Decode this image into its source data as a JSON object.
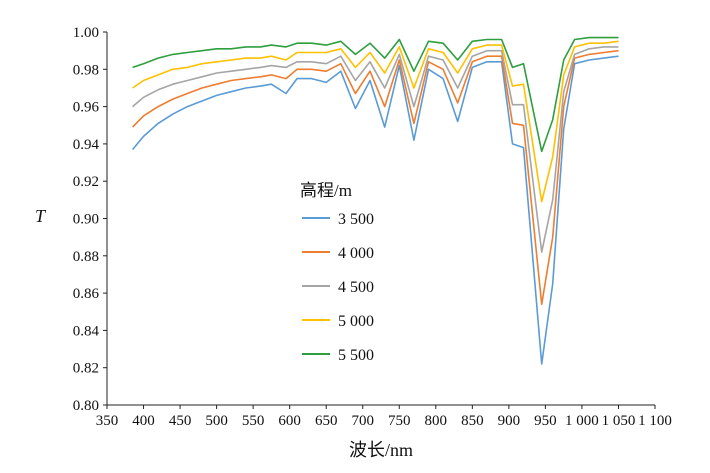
{
  "chart_data": {
    "type": "line",
    "xlabel": "波长/nm",
    "ylabel": "T",
    "xlim": [
      350,
      1100
    ],
    "ylim": [
      0.8,
      1.0
    ],
    "x_ticks": [
      350,
      400,
      450,
      500,
      550,
      600,
      650,
      700,
      750,
      800,
      850,
      900,
      950,
      1000,
      1050,
      1100
    ],
    "x_tick_labels": [
      "350",
      "400",
      "450",
      "500",
      "550",
      "600",
      "650",
      "700",
      "750",
      "800",
      "850",
      "900",
      "950",
      "1 000",
      "1 050",
      "1 100"
    ],
    "y_ticks": [
      0.8,
      0.82,
      0.84,
      0.86,
      0.88,
      0.9,
      0.92,
      0.94,
      0.96,
      0.98,
      1.0
    ],
    "y_tick_labels": [
      "0.80",
      "0.82",
      "0.84",
      "0.86",
      "0.88",
      "0.90",
      "0.92",
      "0.94",
      "0.96",
      "0.98",
      "1.00"
    ],
    "grid": false,
    "legend_title": "高程/m",
    "legend_position": "center-left",
    "x": [
      385,
      400,
      420,
      440,
      460,
      480,
      500,
      520,
      540,
      560,
      575,
      595,
      610,
      630,
      650,
      670,
      690,
      710,
      730,
      750,
      770,
      790,
      810,
      830,
      850,
      870,
      890,
      905,
      920,
      945,
      960,
      975,
      990,
      1010,
      1030,
      1050
    ],
    "series": [
      {
        "name": "3 500",
        "color": "#5b9bd5",
        "values": [
          0.937,
          0.944,
          0.951,
          0.956,
          0.96,
          0.963,
          0.966,
          0.968,
          0.97,
          0.971,
          0.972,
          0.967,
          0.975,
          0.975,
          0.973,
          0.979,
          0.959,
          0.974,
          0.949,
          0.982,
          0.942,
          0.98,
          0.975,
          0.952,
          0.981,
          0.984,
          0.984,
          0.94,
          0.938,
          0.822,
          0.865,
          0.948,
          0.983,
          0.985,
          0.986,
          0.987
        ]
      },
      {
        "name": "4 000",
        "color": "#ed7d31",
        "values": [
          0.949,
          0.955,
          0.96,
          0.964,
          0.967,
          0.97,
          0.972,
          0.974,
          0.975,
          0.976,
          0.977,
          0.975,
          0.98,
          0.98,
          0.979,
          0.983,
          0.967,
          0.979,
          0.96,
          0.985,
          0.951,
          0.984,
          0.98,
          0.962,
          0.984,
          0.987,
          0.987,
          0.951,
          0.95,
          0.854,
          0.89,
          0.96,
          0.986,
          0.988,
          0.989,
          0.99
        ]
      },
      {
        "name": "4 500",
        "color": "#a5a5a5",
        "values": [
          0.96,
          0.965,
          0.969,
          0.972,
          0.974,
          0.976,
          0.978,
          0.979,
          0.98,
          0.981,
          0.982,
          0.981,
          0.984,
          0.984,
          0.983,
          0.987,
          0.974,
          0.984,
          0.97,
          0.988,
          0.96,
          0.987,
          0.985,
          0.97,
          0.987,
          0.99,
          0.99,
          0.961,
          0.961,
          0.882,
          0.91,
          0.968,
          0.988,
          0.991,
          0.992,
          0.992
        ]
      },
      {
        "name": "5 000",
        "color": "#ffc000",
        "values": [
          0.97,
          0.974,
          0.977,
          0.98,
          0.981,
          0.983,
          0.984,
          0.985,
          0.986,
          0.986,
          0.987,
          0.985,
          0.989,
          0.989,
          0.989,
          0.991,
          0.981,
          0.989,
          0.978,
          0.992,
          0.97,
          0.991,
          0.989,
          0.978,
          0.991,
          0.993,
          0.993,
          0.971,
          0.972,
          0.909,
          0.933,
          0.977,
          0.992,
          0.994,
          0.994,
          0.995
        ]
      },
      {
        "name": "5 500",
        "color": "#2e9e3f",
        "values": [
          0.981,
          0.983,
          0.986,
          0.988,
          0.989,
          0.99,
          0.991,
          0.991,
          0.992,
          0.992,
          0.993,
          0.992,
          0.994,
          0.994,
          0.993,
          0.995,
          0.988,
          0.994,
          0.986,
          0.996,
          0.979,
          0.995,
          0.994,
          0.985,
          0.995,
          0.996,
          0.996,
          0.981,
          0.983,
          0.936,
          0.953,
          0.985,
          0.996,
          0.997,
          0.997,
          0.997
        ]
      }
    ]
  }
}
